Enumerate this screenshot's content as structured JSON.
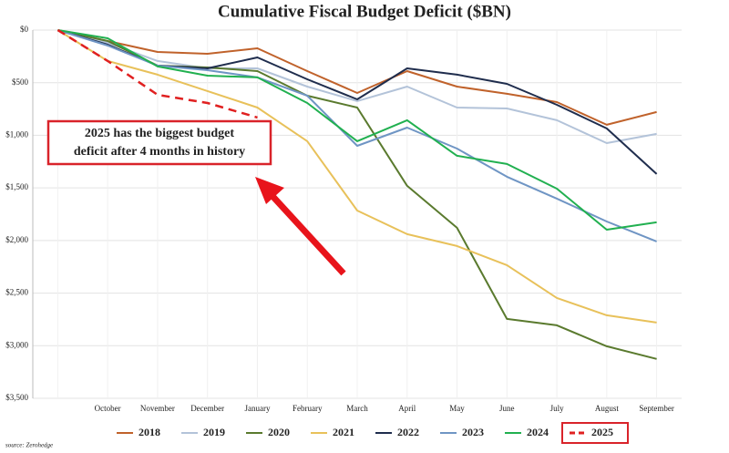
{
  "chart_data": {
    "type": "line",
    "title": "Cumulative Fiscal Budget Deficit ($BN)",
    "categories": [
      null,
      "October",
      "November",
      "December",
      "January",
      "February",
      "March",
      "April",
      "May",
      "June",
      "July",
      "August",
      "September"
    ],
    "ylim": [
      0,
      3500
    ],
    "y_inverted": true,
    "yticks": [
      {
        "value": 0,
        "label": "$0"
      },
      {
        "value": 500,
        "label": "$500"
      },
      {
        "value": 1000,
        "label": "$1,000"
      },
      {
        "value": 1500,
        "label": "$1,500"
      },
      {
        "value": 2000,
        "label": "$2,000"
      },
      {
        "value": 2500,
        "label": "$2,500"
      },
      {
        "value": 3000,
        "label": "$3,000"
      },
      {
        "value": 3500,
        "label": "$3,500"
      }
    ],
    "grid": true,
    "series": [
      {
        "name": "2018",
        "color": "#c0622b",
        "values": [
          0,
          104,
          208,
          225,
          173,
          390,
          598,
          390,
          537,
          606,
          684,
          900,
          779
        ]
      },
      {
        "name": "2019",
        "color": "#b3c3d9",
        "values": [
          0,
          121,
          294,
          364,
          364,
          537,
          675,
          537,
          736,
          745,
          857,
          1074,
          987
        ]
      },
      {
        "name": "2020",
        "color": "#5a7a2e",
        "values": [
          0,
          104,
          338,
          355,
          390,
          624,
          736,
          1481,
          1879,
          2745,
          2806,
          3005,
          3126
        ]
      },
      {
        "name": "2021",
        "color": "#e8c15a",
        "values": [
          0,
          294,
          424,
          580,
          736,
          1056,
          1715,
          1940,
          2052,
          2234,
          2546,
          2711,
          2780
        ]
      },
      {
        "name": "2022",
        "color": "#1f2d4d",
        "values": [
          0,
          139,
          338,
          364,
          260,
          468,
          658,
          364,
          424,
          511,
          710,
          935,
          1368
        ]
      },
      {
        "name": "2023",
        "color": "#6f95c4",
        "values": [
          0,
          147,
          338,
          381,
          450,
          624,
          1100,
          927,
          1126,
          1394,
          1602,
          1819,
          2009
        ]
      },
      {
        "name": "2024",
        "color": "#21b050",
        "values": [
          0,
          78,
          346,
          433,
          450,
          693,
          1056,
          857,
          1195,
          1273,
          1507,
          1897,
          1827
        ]
      },
      {
        "name": "2025",
        "color": "#e02020",
        "dash": true,
        "highlight": true,
        "values": [
          0,
          294,
          615,
          693,
          831,
          null,
          null,
          null,
          null,
          null,
          null,
          null,
          null
        ]
      }
    ],
    "annotation": [
      "2025 has the biggest budget",
      "deficit after 4 months in history"
    ],
    "source": "source: Zerohedge"
  }
}
